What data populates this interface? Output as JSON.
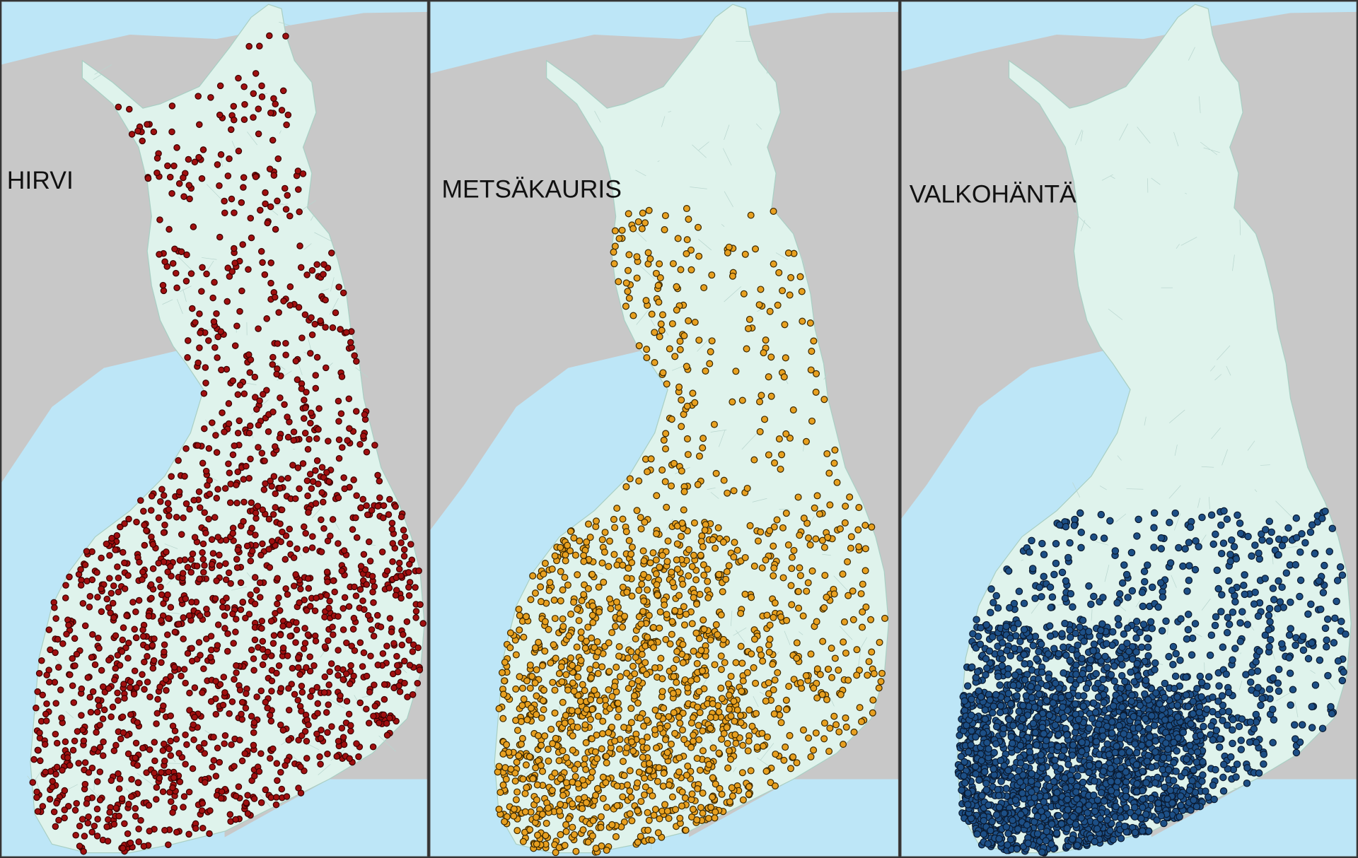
{
  "panels": [
    {
      "label": "HIRVI",
      "dot_color": "#a01010",
      "dot_stroke": "#3a0000"
    },
    {
      "label": "METSÄKAURIS",
      "dot_color": "#e8a020",
      "dot_stroke": "#3a2800"
    },
    {
      "label": "VALKOHÄNTÄ",
      "dot_color": "#1d4f86",
      "dot_stroke": "#0a1a30"
    }
  ],
  "colors": {
    "land_foreign": "#c8c8c8",
    "sea": "#bde6f7",
    "finland": "#dff3ec",
    "divider": "#333333"
  }
}
